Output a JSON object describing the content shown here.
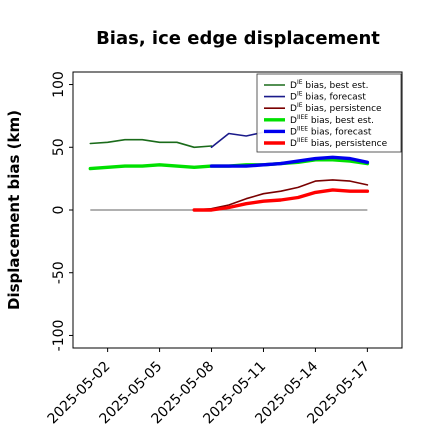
{
  "chart_data": {
    "type": "line",
    "title": "Bias, ice edge displacement",
    "ylabel": "Displacement bias (km)",
    "xlabel": "",
    "ylim": [
      -110,
      110
    ],
    "yticks": [
      -100,
      -50,
      0,
      50,
      100
    ],
    "xlim": [
      "2025-04-30",
      "2025-05-19"
    ],
    "xticks": [
      "2025-05-02",
      "2025-05-05",
      "2025-05-08",
      "2025-05-11",
      "2025-05-14",
      "2025-05-17"
    ],
    "highlighted_tick": "2025-05-08",
    "highlight_color": "#228B22",
    "zero_line": 0,
    "grid": false,
    "legend_placement": "top-right",
    "series": [
      {
        "name": "D^IE bias, best est.",
        "legend_prefix": "D",
        "legend_sup": "IE",
        "legend_suffix": " bias, best est.",
        "color": "#1a6b1a",
        "width": 1.6,
        "x": [
          "2025-05-01",
          "2025-05-02",
          "2025-05-03",
          "2025-05-04",
          "2025-05-05",
          "2025-05-06",
          "2025-05-07",
          "2025-05-08"
        ],
        "y": [
          53,
          54,
          56,
          56,
          54,
          54,
          50,
          51
        ]
      },
      {
        "name": "D^IE bias, forecast",
        "legend_prefix": "D",
        "legend_sup": "IE",
        "legend_suffix": " bias, forecast",
        "color": "#1a1a8a",
        "width": 1.6,
        "x": [
          "2025-05-08",
          "2025-05-09",
          "2025-05-10",
          "2025-05-11"
        ],
        "y": [
          50,
          61,
          59,
          62
        ]
      },
      {
        "name": "D^IE bias, persistence",
        "legend_prefix": "D",
        "legend_sup": "IE",
        "legend_suffix": " bias, persistence",
        "color": "#7a0000",
        "width": 1.6,
        "x": [
          "2025-05-07",
          "2025-05-08",
          "2025-05-09",
          "2025-05-10",
          "2025-05-11",
          "2025-05-12",
          "2025-05-13",
          "2025-05-14",
          "2025-05-15",
          "2025-05-16",
          "2025-05-17"
        ],
        "y": [
          0,
          1,
          4,
          9,
          13,
          15,
          18,
          23,
          24,
          23,
          20
        ]
      },
      {
        "name": "D^IIEE bias, best est.",
        "legend_prefix": "D",
        "legend_sup": "IIEE",
        "legend_suffix": " bias, best est.",
        "color": "#00e000",
        "width": 3.4,
        "x": [
          "2025-05-01",
          "2025-05-02",
          "2025-05-03",
          "2025-05-04",
          "2025-05-05",
          "2025-05-06",
          "2025-05-07",
          "2025-05-08",
          "2025-05-09",
          "2025-05-10",
          "2025-05-11",
          "2025-05-12",
          "2025-05-13",
          "2025-05-14",
          "2025-05-15",
          "2025-05-16",
          "2025-05-17"
        ],
        "y": [
          33,
          34,
          35,
          35,
          36,
          35,
          34,
          35,
          35,
          36,
          36,
          37,
          38,
          40,
          40,
          39,
          37
        ]
      },
      {
        "name": "D^IIEE bias, forecast",
        "legend_prefix": "D",
        "legend_sup": "IIEE",
        "legend_suffix": " bias, forecast",
        "color": "#0000ee",
        "width": 3.4,
        "x": [
          "2025-05-08",
          "2025-05-09",
          "2025-05-10",
          "2025-05-11",
          "2025-05-12",
          "2025-05-13",
          "2025-05-14",
          "2025-05-15",
          "2025-05-16",
          "2025-05-17"
        ],
        "y": [
          35,
          35,
          35,
          36,
          37,
          39,
          41,
          42,
          41,
          38
        ]
      },
      {
        "name": "D^IIEE bias, persistence",
        "legend_prefix": "D",
        "legend_sup": "IIEE",
        "legend_suffix": " bias, persistence",
        "color": "#ff0000",
        "width": 3.4,
        "x": [
          "2025-05-07",
          "2025-05-08",
          "2025-05-09",
          "2025-05-10",
          "2025-05-11",
          "2025-05-12",
          "2025-05-13",
          "2025-05-14",
          "2025-05-15",
          "2025-05-16",
          "2025-05-17"
        ],
        "y": [
          0,
          0,
          2,
          5,
          7,
          8,
          10,
          14,
          16,
          15,
          15
        ]
      }
    ]
  }
}
